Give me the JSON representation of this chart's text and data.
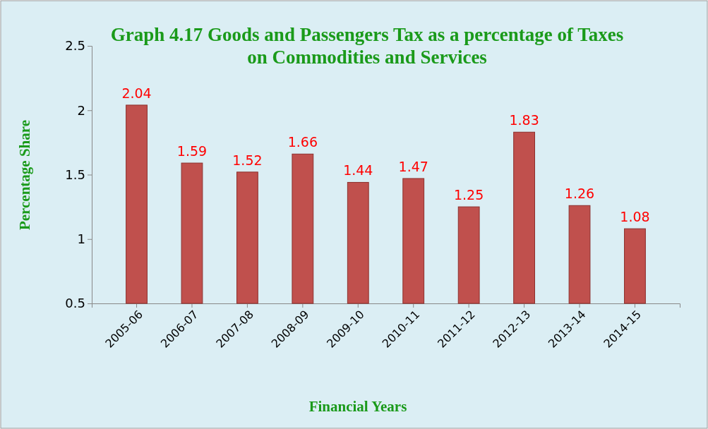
{
  "chart_data": {
    "type": "bar",
    "title": "Graph 4.17 Goods and Passengers Tax as a percentage of Taxes on Commodities and Services",
    "xlabel": "Financial Years",
    "ylabel": "Percentage Share",
    "categories": [
      "2005-06",
      "2006-07",
      "2007-08",
      "2008-09",
      "2009-10",
      "2010-11",
      "2011-12",
      "2012-13",
      "2013-14",
      "2014-15"
    ],
    "values": [
      2.04,
      1.59,
      1.52,
      1.66,
      1.44,
      1.47,
      1.25,
      1.83,
      1.26,
      1.08
    ],
    "color": "#c0504d",
    "ylim": [
      0.5,
      2.5
    ],
    "yticks": [
      0.5,
      1,
      1.5,
      2,
      2.5
    ],
    "data_labels": true
  }
}
